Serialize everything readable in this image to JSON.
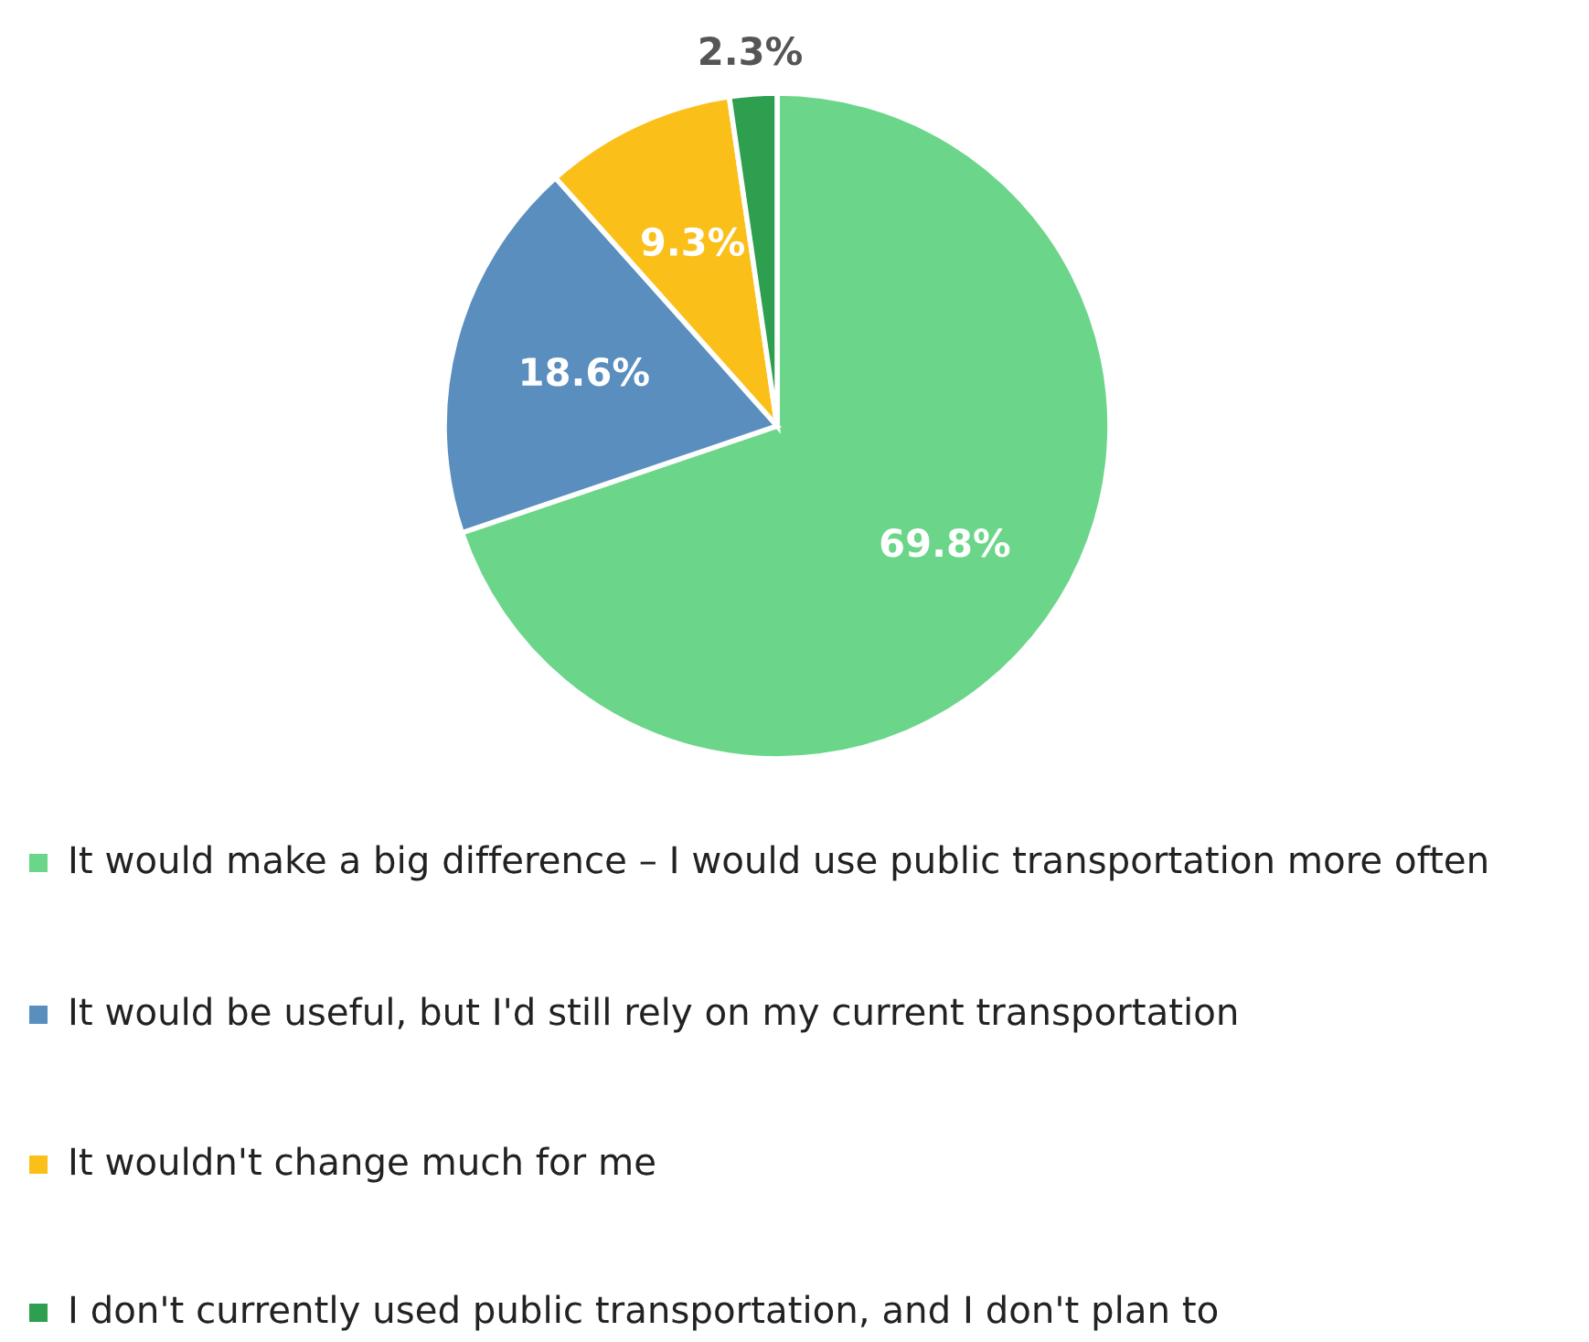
{
  "chart_data": {
    "type": "pie",
    "categories": [
      "It would make a big difference – I would use public transportation more often",
      "It would be useful, but I'd still rely on my current transportation",
      "It wouldn't change much for me",
      "I don't currently used public transportation, and I don't plan to"
    ],
    "values": [
      69.8,
      18.6,
      9.3,
      2.3
    ],
    "value_labels": [
      "69.8%",
      "18.6%",
      "9.3%",
      "2.3%"
    ],
    "colors": [
      "#6bd68a",
      "#5a8ebf",
      "#fbbf1a",
      "#2e9e4f"
    ],
    "legend": "bottom"
  }
}
